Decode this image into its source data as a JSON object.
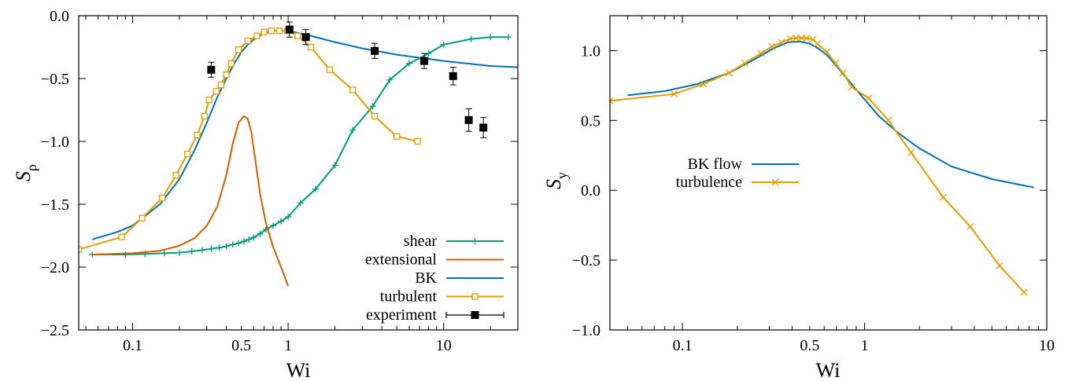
{
  "chart_data": [
    {
      "type": "line",
      "xlabel": "Wi",
      "ylabel_main": "S",
      "ylabel_sub": "ρ",
      "xscale": "log",
      "xlim": [
        0.045,
        30
      ],
      "ylim": [
        -2.5,
        0.0
      ],
      "xticks": [
        0.1,
        0.5,
        1,
        10
      ],
      "xtick_labels": [
        "0.1",
        "0.5",
        "1",
        "10"
      ],
      "yticks": [
        -2.5,
        -2.0,
        -1.5,
        -1.0,
        -0.5,
        0.0
      ],
      "ytick_labels": [
        "−2.5",
        "−2.0",
        "−1.5",
        "−1.0",
        "−0.5",
        "0.0"
      ],
      "legend_position": "bottom-right",
      "series": [
        {
          "name": "shear",
          "color": "#009e73",
          "marker": "plus",
          "x": [
            0.055,
            0.09,
            0.12,
            0.16,
            0.2,
            0.24,
            0.28,
            0.32,
            0.36,
            0.4,
            0.44,
            0.48,
            0.52,
            0.56,
            0.6,
            0.66,
            0.72,
            0.8,
            0.9,
            1.0,
            1.2,
            1.5,
            2.0,
            2.6,
            3.5,
            4.5,
            6.0,
            8.0,
            10.0,
            15.0,
            20.0,
            26.0
          ],
          "y": [
            -1.9,
            -1.9,
            -1.895,
            -1.89,
            -1.885,
            -1.875,
            -1.865,
            -1.855,
            -1.845,
            -1.835,
            -1.82,
            -1.81,
            -1.795,
            -1.78,
            -1.765,
            -1.735,
            -1.7,
            -1.67,
            -1.635,
            -1.6,
            -1.49,
            -1.38,
            -1.19,
            -0.91,
            -0.72,
            -0.51,
            -0.38,
            -0.3,
            -0.23,
            -0.185,
            -0.17,
            -0.17
          ]
        },
        {
          "name": "extensional",
          "color": "#d55e00",
          "marker": "none",
          "x": [
            0.055,
            0.1,
            0.15,
            0.2,
            0.25,
            0.3,
            0.35,
            0.4,
            0.44,
            0.48,
            0.52,
            0.55,
            0.58,
            0.62,
            0.66,
            0.72,
            0.8,
            0.9,
            1.0
          ],
          "y": [
            -1.9,
            -1.89,
            -1.87,
            -1.83,
            -1.77,
            -1.67,
            -1.52,
            -1.27,
            -1.02,
            -0.85,
            -0.8,
            -0.82,
            -0.93,
            -1.18,
            -1.42,
            -1.65,
            -1.84,
            -2.0,
            -2.15
          ]
        },
        {
          "name": "BK",
          "color": "#0072b2",
          "marker": "none",
          "x": [
            0.055,
            0.08,
            0.1,
            0.15,
            0.2,
            0.25,
            0.3,
            0.35,
            0.4,
            0.45,
            0.5,
            0.55,
            0.6,
            0.7,
            0.8,
            1.0,
            1.3,
            2.0,
            3.0,
            5.0,
            10.0,
            20.0,
            30.0
          ],
          "y": [
            -1.78,
            -1.72,
            -1.67,
            -1.5,
            -1.3,
            -1.07,
            -0.85,
            -0.65,
            -0.5,
            -0.38,
            -0.29,
            -0.23,
            -0.19,
            -0.14,
            -0.12,
            -0.12,
            -0.15,
            -0.21,
            -0.26,
            -0.31,
            -0.36,
            -0.4,
            -0.41
          ]
        },
        {
          "name": "turbulent",
          "color": "#e69f00",
          "marker": "open-square",
          "x": [
            0.045,
            0.085,
            0.115,
            0.155,
            0.19,
            0.225,
            0.26,
            0.29,
            0.31,
            0.345,
            0.37,
            0.4,
            0.43,
            0.48,
            0.55,
            0.63,
            0.7,
            0.78,
            0.88,
            0.99,
            1.15,
            1.4,
            1.85,
            2.6,
            3.6,
            5.0,
            6.8
          ],
          "y": [
            -1.86,
            -1.76,
            -1.61,
            -1.45,
            -1.27,
            -1.1,
            -0.95,
            -0.8,
            -0.67,
            -0.6,
            -0.55,
            -0.47,
            -0.38,
            -0.27,
            -0.2,
            -0.16,
            -0.13,
            -0.12,
            -0.12,
            -0.12,
            -0.16,
            -0.25,
            -0.43,
            -0.59,
            -0.8,
            -0.96,
            -1.0
          ]
        }
      ],
      "experiment": {
        "name": "experiment",
        "color": "#000000",
        "marker": "filled-square",
        "points": [
          {
            "x": 0.32,
            "y": -0.43,
            "err": 0.06
          },
          {
            "x": 1.02,
            "y": -0.11,
            "err": 0.06
          },
          {
            "x": 1.3,
            "y": -0.17,
            "err": 0.06
          },
          {
            "x": 3.6,
            "y": -0.28,
            "err": 0.06
          },
          {
            "x": 7.5,
            "y": -0.36,
            "err": 0.06
          },
          {
            "x": 11.5,
            "y": -0.48,
            "err": 0.07
          },
          {
            "x": 14.5,
            "y": -0.83,
            "err": 0.09
          },
          {
            "x": 18.0,
            "y": -0.89,
            "err": 0.08
          }
        ]
      }
    },
    {
      "type": "line",
      "xlabel": "Wi",
      "ylabel_main": "S",
      "ylabel_sub": "y",
      "xscale": "log",
      "xlim": [
        0.04,
        10
      ],
      "ylim": [
        -1.0,
        1.25
      ],
      "xticks": [
        0.1,
        0.5,
        1,
        10
      ],
      "xtick_labels": [
        "0.1",
        "0.5",
        "1",
        "10"
      ],
      "yticks": [
        -1.0,
        -0.5,
        0.0,
        0.5,
        1.0
      ],
      "ytick_labels": [
        "−1.0",
        "−0.5",
        "0.0",
        "0.5",
        "1.0"
      ],
      "legend_position": "center-left",
      "series": [
        {
          "name": "BK flow",
          "color": "#0072b2",
          "marker": "none",
          "x": [
            0.05,
            0.08,
            0.12,
            0.18,
            0.25,
            0.32,
            0.38,
            0.44,
            0.5,
            0.55,
            0.62,
            0.7,
            0.8,
            0.9,
            1.0,
            1.2,
            1.5,
            2.0,
            3.0,
            5.0,
            8.5
          ],
          "y": [
            0.68,
            0.71,
            0.76,
            0.84,
            0.94,
            1.02,
            1.06,
            1.065,
            1.05,
            1.02,
            0.97,
            0.89,
            0.8,
            0.72,
            0.65,
            0.53,
            0.42,
            0.3,
            0.17,
            0.08,
            0.02
          ]
        },
        {
          "name": "turbulence",
          "color": "#e69f00",
          "marker": "cross",
          "x": [
            0.04,
            0.09,
            0.13,
            0.18,
            0.22,
            0.27,
            0.31,
            0.35,
            0.39,
            0.42,
            0.45,
            0.48,
            0.52,
            0.55,
            0.62,
            0.69,
            0.76,
            0.85,
            1.05,
            1.35,
            1.8,
            2.7,
            3.8,
            5.5,
            7.5
          ],
          "y": [
            0.64,
            0.69,
            0.76,
            0.84,
            0.91,
            0.98,
            1.03,
            1.06,
            1.085,
            1.09,
            1.09,
            1.09,
            1.08,
            1.05,
            0.99,
            0.91,
            0.84,
            0.74,
            0.66,
            0.5,
            0.27,
            -0.05,
            -0.26,
            -0.54,
            -0.73
          ]
        }
      ]
    }
  ]
}
